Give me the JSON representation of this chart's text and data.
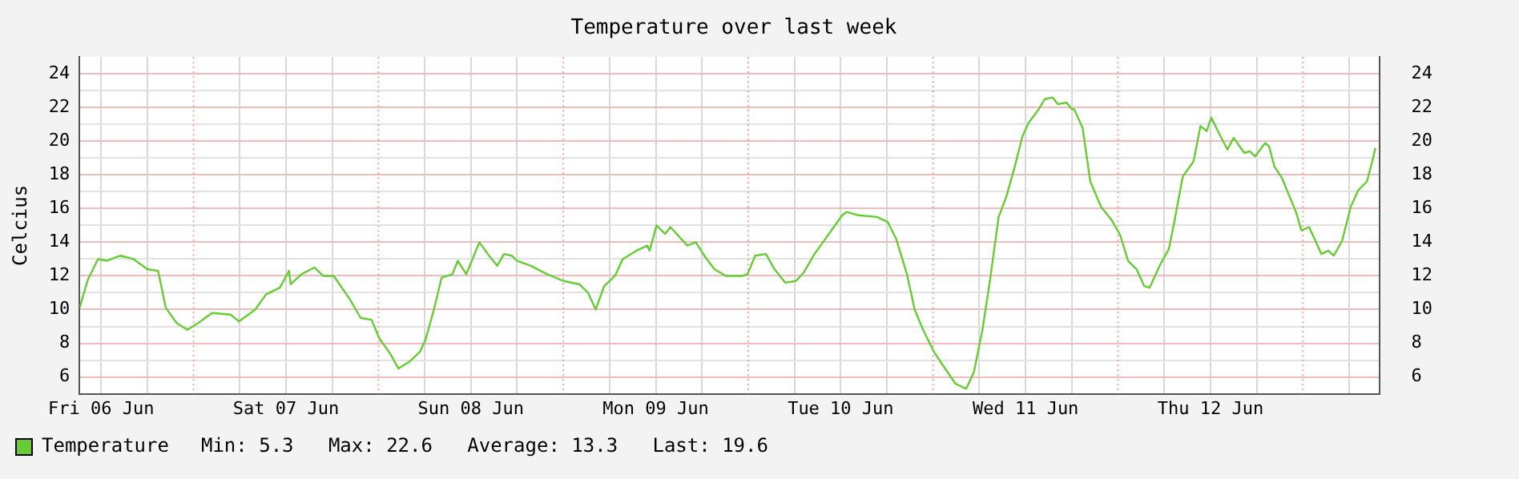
{
  "chart_data": {
    "type": "line",
    "title": "Temperature over last week",
    "ylabel": "Celcius",
    "xlim": [
      "--06-06T09:12",
      "--06-13T09:54"
    ],
    "xticks": [
      {
        "value": "--06-06T12:00",
        "label": "Fri 06 Jun"
      },
      {
        "value": "--06-06T18:00",
        "label": null
      },
      {
        "value": "--06-07T06:00",
        "label": null
      },
      {
        "value": "--06-07T12:00",
        "label": "Sat 07 Jun"
      },
      {
        "value": "--06-07T18:00",
        "label": null
      },
      {
        "value": "--06-08T06:00",
        "label": null
      },
      {
        "value": "--06-08T12:00",
        "label": "Sun 08 Jun"
      },
      {
        "value": "--06-08T18:00",
        "label": null
      },
      {
        "value": "--06-09T06:00",
        "label": null
      },
      {
        "value": "--06-09T12:00",
        "label": "Mon 09 Jun"
      },
      {
        "value": "--06-09T18:00",
        "label": null
      },
      {
        "value": "--06-10T06:00",
        "label": null
      },
      {
        "value": "--06-10T12:00",
        "label": "Tue 10 Jun"
      },
      {
        "value": "--06-10T18:00",
        "label": null
      },
      {
        "value": "--06-11T06:00",
        "label": null
      },
      {
        "value": "--06-11T12:00",
        "label": "Wed 11 Jun"
      },
      {
        "value": "--06-11T18:00",
        "label": null
      },
      {
        "value": "--06-12T06:00",
        "label": null
      },
      {
        "value": "--06-12T12:00",
        "label": "Thu 12 Jun"
      },
      {
        "value": "--06-12T18:00",
        "label": null
      },
      {
        "value": "--06-13T06:00",
        "label": null
      }
    ],
    "ylim": [
      5,
      25
    ],
    "yticks": [
      6,
      {
        "value": 7,
        "label": null
      },
      8,
      {
        "value": 9,
        "label": null
      },
      10,
      {
        "value": 11,
        "label": null
      },
      12,
      {
        "value": 13,
        "label": null
      },
      14,
      {
        "value": 15,
        "label": null
      },
      16,
      {
        "value": 17,
        "label": null
      },
      18,
      {
        "value": 19,
        "label": null
      },
      20,
      {
        "value": 21,
        "label": null
      },
      22,
      {
        "value": 23,
        "label": null
      },
      24
    ],
    "y2lim": [
      5,
      25
    ],
    "y2ticks": [
      6,
      8,
      10,
      12,
      14,
      16,
      18,
      20,
      22,
      24
    ],
    "grid": true,
    "legend": "bottom left",
    "marker": "none",
    "line_style": "solid",
    "ref_lines": [
      {
        "axis": "x",
        "value": "--06-07T00:00",
        "color": "#f4a0a0"
      },
      {
        "axis": "x",
        "value": "--06-08T00:00",
        "color": "#f4a0a0"
      },
      {
        "axis": "x",
        "value": "--06-09T00:00",
        "color": "#f4a0a0"
      },
      {
        "axis": "x",
        "value": "--06-10T00:00",
        "color": "#f4a0a0"
      },
      {
        "axis": "x",
        "value": "--06-11T00:00",
        "color": "#f4a0a0"
      },
      {
        "axis": "x",
        "value": "--06-12T00:00",
        "color": "#f4a0a0"
      },
      {
        "axis": "x",
        "value": "--06-13T00:00",
        "color": "#f4a0a0"
      }
    ],
    "annotations": [
      "Min: 5.3   Max: 22.6   Average: 13.3   Last: 19.6"
    ],
    "series": [
      {
        "name": "Temperature",
        "color": "#66cc33",
        "x": [
          "--06-06T09:12",
          "--06-06T10:18",
          "--06-06T11:36",
          "--06-06T12:42",
          "--06-06T14:30",
          "--06-06T16:12",
          "--06-06T18:00",
          "--06-06T19:24",
          "--06-06T20:24",
          "--06-06T21:48",
          "--06-06T23:12",
          "--06-07T00:36",
          "--06-07T02:24",
          "--06-07T04:48",
          "--06-07T05:54",
          "--06-07T08:00",
          "--06-07T09:24",
          "--06-07T11:12",
          "--06-07T12:24",
          "--06-07T12:36",
          "--06-07T14:00",
          "--06-07T15:42",
          "--06-07T16:48",
          "--06-07T18:12",
          "--06-07T20:18",
          "--06-07T21:42",
          "--06-07T23:06",
          "--06-08T00:06",
          "--06-08T01:30",
          "--06-08T02:36",
          "--06-08T04:00",
          "--06-08T05:24",
          "--06-08T06:06",
          "--06-08T07:12",
          "--06-08T08:12",
          "--06-08T09:36",
          "--06-08T10:18",
          "--06-08T11:24",
          "--06-08T13:06",
          "--06-08T14:12",
          "--06-08T15:24",
          "--06-08T16:18",
          "--06-08T17:18",
          "--06-08T18:00",
          "--06-08T19:48",
          "--06-08T21:54",
          "--06-09T00:00",
          "--06-09T02:06",
          "--06-09T03:12",
          "--06-09T04:12",
          "--06-09T05:18",
          "--06-09T06:42",
          "--06-09T07:42",
          "--06-09T09:30",
          "--06-09T10:54",
          "--06-09T11:12",
          "--06-09T12:06",
          "--06-09T13:12",
          "--06-09T13:54",
          "--06-09T16:06",
          "--06-09T17:12",
          "--06-09T18:18",
          "--06-09T19:36",
          "--06-09T21:06",
          "--06-09T23:12",
          "--06-09T23:54",
          "--06-10T00:54",
          "--06-10T02:18",
          "--06-10T03:24",
          "--06-10T04:48",
          "--06-10T06:12",
          "--06-10T07:12",
          "--06-10T08:36",
          "--06-10T09:42",
          "--06-10T11:06",
          "--06-10T12:12",
          "--06-10T12:48",
          "--06-10T14:18",
          "--06-10T16:42",
          "--06-10T18:06",
          "--06-10T19:12",
          "--06-10T20:36",
          "--06-10T21:36",
          "--06-10T22:42",
          "--06-11T00:06",
          "--06-11T01:06",
          "--06-11T02:54",
          "--06-11T04:18",
          "--06-11T05:18",
          "--06-11T06:24",
          "--06-11T07:24",
          "--06-11T08:30",
          "--06-11T09:30",
          "--06-11T10:36",
          "--06-11T11:36",
          "--06-11T12:24",
          "--06-11T13:42",
          "--06-11T14:30",
          "--06-11T15:30",
          "--06-11T16:12",
          "--06-11T17:18",
          "--06-11T18:00",
          "--06-11T18:18",
          "--06-11T19:24",
          "--06-11T20:24",
          "--06-11T21:48",
          "--06-11T23:12",
          "--06-12T00:18",
          "--06-12T01:18",
          "--06-12T02:24",
          "--06-12T03:24",
          "--06-12T04:06",
          "--06-12T05:30",
          "--06-12T06:36",
          "--06-12T07:18",
          "--06-12T08:24",
          "--06-12T09:48",
          "--06-12T10:42",
          "--06-12T11:30",
          "--06-12T12:06",
          "--06-12T13:18",
          "--06-12T14:12",
          "--06-12T15:00",
          "--06-12T16:24",
          "--06-12T17:06",
          "--06-12T17:48",
          "--06-12T19:06",
          "--06-12T19:36",
          "--06-12T20:18",
          "--06-12T21:18",
          "--06-12T22:00",
          "--06-12T23:06",
          "--06-12T23:48",
          "--06-13T00:48",
          "--06-13T01:36",
          "--06-13T02:24",
          "--06-13T03:18",
          "--06-13T04:00",
          "--06-13T05:06",
          "--06-13T06:12",
          "--06-13T07:12",
          "--06-13T08:18",
          "--06-13T09:00",
          "--06-13T09:24"
        ],
        "values": [
          10.1,
          11.8,
          13.0,
          12.9,
          13.2,
          13.0,
          12.4,
          12.3,
          10.1,
          9.2,
          8.8,
          9.2,
          9.8,
          9.7,
          9.3,
          10.0,
          10.9,
          11.3,
          12.3,
          11.5,
          12.1,
          12.5,
          12.0,
          12.0,
          10.6,
          9.5,
          9.4,
          8.3,
          7.4,
          6.5,
          6.9,
          7.5,
          8.2,
          10.0,
          11.9,
          12.1,
          12.9,
          12.1,
          14.0,
          13.3,
          12.6,
          13.3,
          13.2,
          12.9,
          12.6,
          12.1,
          11.7,
          11.5,
          11.0,
          10.0,
          11.4,
          12.0,
          13.0,
          13.5,
          13.8,
          13.5,
          15.0,
          14.5,
          14.9,
          13.8,
          14.0,
          13.2,
          12.4,
          12.0,
          12.0,
          12.1,
          13.2,
          13.3,
          12.4,
          11.6,
          11.7,
          12.2,
          13.3,
          14.0,
          14.9,
          15.6,
          15.8,
          15.6,
          15.5,
          15.2,
          14.2,
          12.1,
          10.0,
          8.8,
          7.5,
          6.8,
          5.6,
          5.3,
          6.3,
          8.8,
          11.8,
          15.5,
          16.7,
          18.5,
          20.3,
          21.1,
          21.9,
          22.5,
          22.6,
          22.2,
          22.3,
          21.9,
          21.9,
          20.8,
          17.6,
          16.1,
          15.3,
          14.4,
          12.9,
          12.4,
          11.4,
          11.3,
          12.7,
          13.6,
          15.2,
          17.9,
          18.8,
          20.9,
          20.6,
          21.4,
          20.3,
          19.5,
          20.2,
          19.3,
          19.4,
          19.1,
          19.9,
          19.7,
          18.5,
          17.8,
          17.0,
          15.8,
          14.7,
          14.9,
          14.1,
          13.3,
          13.5,
          13.2,
          14.1,
          16.1,
          17.1,
          17.6,
          18.8,
          19.6
        ]
      }
    ]
  }
}
